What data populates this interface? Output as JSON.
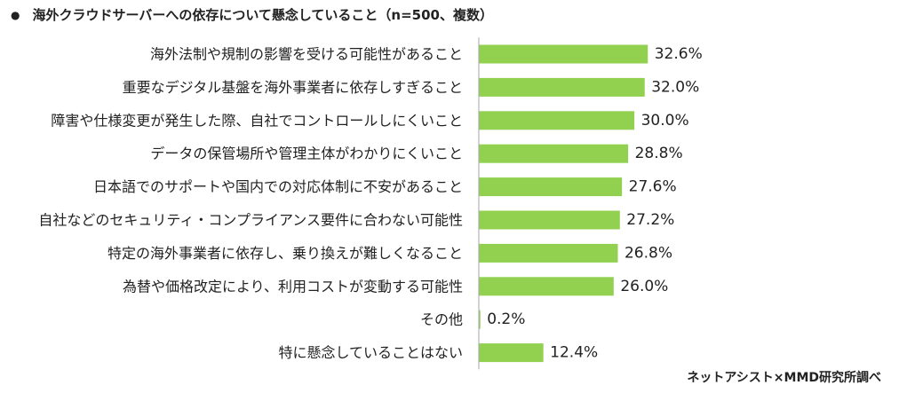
{
  "title": {
    "bullet": "●",
    "text": "海外クラウドサーバーへの依存について懸念していること（n=500、複数）"
  },
  "source": "ネットアシスト×MMD研究所調べ",
  "colors": {
    "bar": "#92d050",
    "axis": "#a6a6a6",
    "text": "#222222"
  },
  "chart_data": {
    "type": "bar",
    "orientation": "horizontal",
    "title": "海外クラウドサーバーへの依存について懸念していること（n=500、複数）",
    "unit": "%",
    "categories": [
      "海外法制や規制の影響を受ける可能性があること",
      "重要なデジタル基盤を海外事業者に依存しすぎること",
      "障害や仕様変更が発生した際、自社でコントロールしにくいこと",
      "データの保管場所や管理主体がわかりにくいこと",
      "日本語でのサポートや国内での対応体制に不安があること",
      "自社などのセキュリティ・コンプライアンス要件に合わない可能性",
      "特定の海外事業者に依存し、乗り換えが難しくなること",
      "為替や価格改定により、利用コストが変動する可能性",
      "その他",
      "特に懸念していることはない"
    ],
    "values": [
      32.6,
      32.0,
      30.0,
      28.8,
      27.6,
      27.2,
      26.8,
      26.0,
      0.2,
      12.4
    ],
    "value_labels": [
      "32.6%",
      "32.0%",
      "30.0%",
      "28.8%",
      "27.6%",
      "27.2%",
      "26.8%",
      "26.0%",
      "0.2%",
      "12.4%"
    ],
    "grid": false
  }
}
